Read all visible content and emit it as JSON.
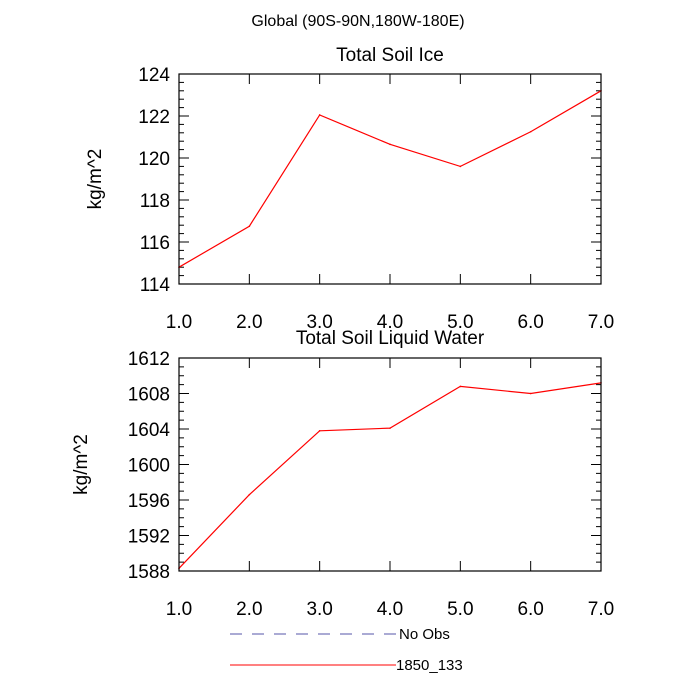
{
  "figure": {
    "suptitle": "Global (90S-90N,180W-180E)"
  },
  "chart_data": [
    {
      "type": "line",
      "title": "Total Soil Ice",
      "xlabel": "",
      "ylabel": "kg/m^2",
      "xlim": [
        1.0,
        7.0
      ],
      "ylim": [
        114,
        124
      ],
      "x_ticks": [
        1.0,
        2.0,
        3.0,
        4.0,
        5.0,
        6.0,
        7.0
      ],
      "x_tick_labels": [
        "1.0",
        "2.0",
        "3.0",
        "4.0",
        "5.0",
        "6.0",
        "7.0"
      ],
      "y_ticks": [
        114,
        116,
        118,
        120,
        122,
        124
      ],
      "y_tick_labels": [
        "114",
        "116",
        "118",
        "120",
        "122",
        "124"
      ],
      "grid": false,
      "x": [
        1.0,
        2.0,
        3.0,
        4.0,
        5.0,
        6.0,
        7.0
      ],
      "series": [
        {
          "name": "1850_133",
          "color": "#ff0000",
          "values": [
            114.8,
            116.75,
            122.05,
            120.65,
            119.6,
            121.25,
            123.2
          ]
        }
      ]
    },
    {
      "type": "line",
      "title": "Total Soil Liquid Water",
      "xlabel": "",
      "ylabel": "kg/m^2",
      "xlim": [
        1.0,
        7.0
      ],
      "ylim": [
        1588,
        1612
      ],
      "x_ticks": [
        1.0,
        2.0,
        3.0,
        4.0,
        5.0,
        6.0,
        7.0
      ],
      "x_tick_labels": [
        "1.0",
        "2.0",
        "3.0",
        "4.0",
        "5.0",
        "6.0",
        "7.0"
      ],
      "y_ticks": [
        1588,
        1592,
        1596,
        1600,
        1604,
        1608,
        1612
      ],
      "y_tick_labels": [
        "1588",
        "1592",
        "1596",
        "1600",
        "1604",
        "1608",
        "1612"
      ],
      "grid": false,
      "x": [
        1.0,
        2.0,
        3.0,
        4.0,
        5.0,
        6.0,
        7.0
      ],
      "series": [
        {
          "name": "1850_133",
          "color": "#ff0000",
          "values": [
            1588.3,
            1596.6,
            1603.8,
            1604.1,
            1608.8,
            1608.0,
            1609.2
          ]
        }
      ]
    }
  ],
  "legend": {
    "placement": "bottom",
    "entries": [
      {
        "label": "No Obs",
        "color": "#5555aa",
        "style": "dashed"
      },
      {
        "label": "1850_133",
        "color": "#ff0000",
        "style": "solid"
      }
    ]
  }
}
